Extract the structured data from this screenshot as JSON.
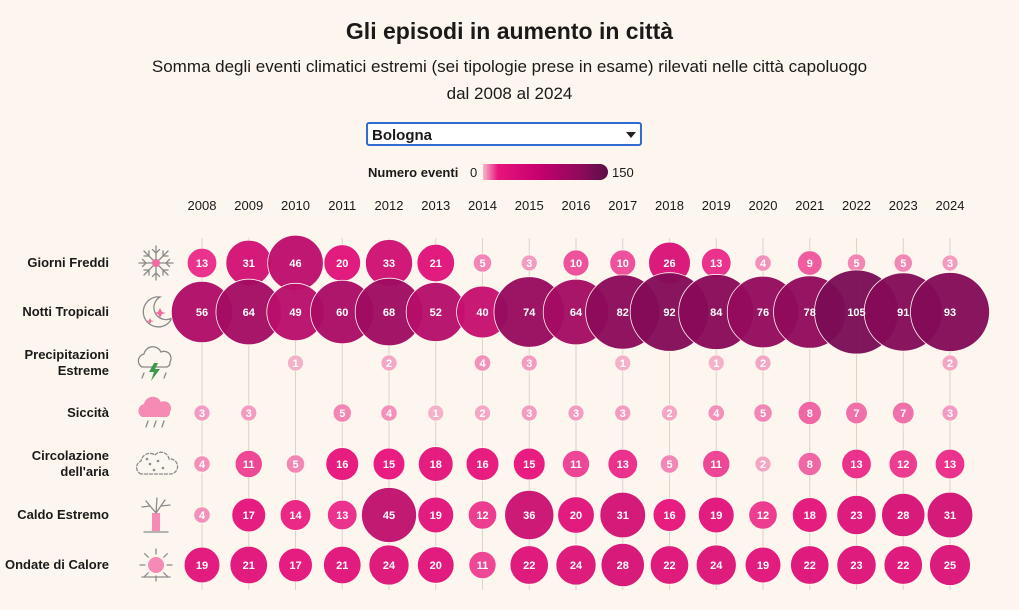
{
  "title": "Gli episodi in aumento in città",
  "subtitle": "Somma degli eventi climatici estremi (sei tipologie prese in esame) rilevati nelle città capoluogo dal 2008 al 2024",
  "city_select": {
    "selected": "Bologna"
  },
  "legend": {
    "label": "Numero eventi",
    "min": "0",
    "max": "150"
  },
  "colors": {
    "background": "#fdf6ee",
    "low": "#f6b8cd",
    "mid": "#e8147c",
    "high": "#8b0a5a",
    "max": "#5a0f47"
  },
  "chart_data": {
    "type": "bubble-grid",
    "title": "Gli episodi in aumento in città",
    "years": [
      "2008",
      "2009",
      "2010",
      "2011",
      "2012",
      "2013",
      "2014",
      "2015",
      "2016",
      "2017",
      "2018",
      "2019",
      "2020",
      "2021",
      "2022",
      "2023",
      "2024"
    ],
    "color_range": [
      0,
      150
    ],
    "rows": [
      {
        "label": [
          "Giorni Freddi"
        ],
        "icon": "snowflake-icon",
        "values": [
          13,
          31,
          46,
          20,
          33,
          21,
          5,
          3,
          10,
          10,
          26,
          13,
          4,
          9,
          5,
          5,
          3
        ]
      },
      {
        "label": [
          "Notti Tropicali"
        ],
        "icon": "moon-stars-icon",
        "values": [
          56,
          64,
          49,
          60,
          68,
          52,
          40,
          74,
          64,
          82,
          92,
          84,
          76,
          78,
          105,
          91,
          93
        ]
      },
      {
        "label": [
          "Precipitazioni",
          "Estreme"
        ],
        "icon": "storm-cloud-icon",
        "values": [
          null,
          null,
          1,
          null,
          2,
          null,
          4,
          3,
          null,
          1,
          null,
          1,
          2,
          null,
          null,
          null,
          2
        ]
      },
      {
        "label": [
          "Siccità"
        ],
        "icon": "drought-cloud-icon",
        "values": [
          3,
          3,
          null,
          5,
          4,
          1,
          2,
          3,
          3,
          3,
          2,
          4,
          5,
          8,
          7,
          7,
          3
        ]
      },
      {
        "label": [
          "Circolazione",
          "dell'aria"
        ],
        "icon": "smog-icon",
        "values": [
          4,
          11,
          5,
          16,
          15,
          18,
          16,
          15,
          11,
          13,
          5,
          11,
          2,
          8,
          13,
          12,
          13
        ]
      },
      {
        "label": [
          "Caldo Estremo"
        ],
        "icon": "dry-tree-icon",
        "values": [
          4,
          17,
          14,
          13,
          45,
          19,
          12,
          36,
          20,
          31,
          16,
          19,
          12,
          18,
          23,
          28,
          31
        ]
      },
      {
        "label": [
          "Ondate di Calore"
        ],
        "icon": "hot-sun-icon",
        "values": [
          19,
          21,
          17,
          21,
          24,
          20,
          11,
          22,
          24,
          28,
          22,
          24,
          19,
          22,
          23,
          22,
          25
        ]
      }
    ]
  }
}
